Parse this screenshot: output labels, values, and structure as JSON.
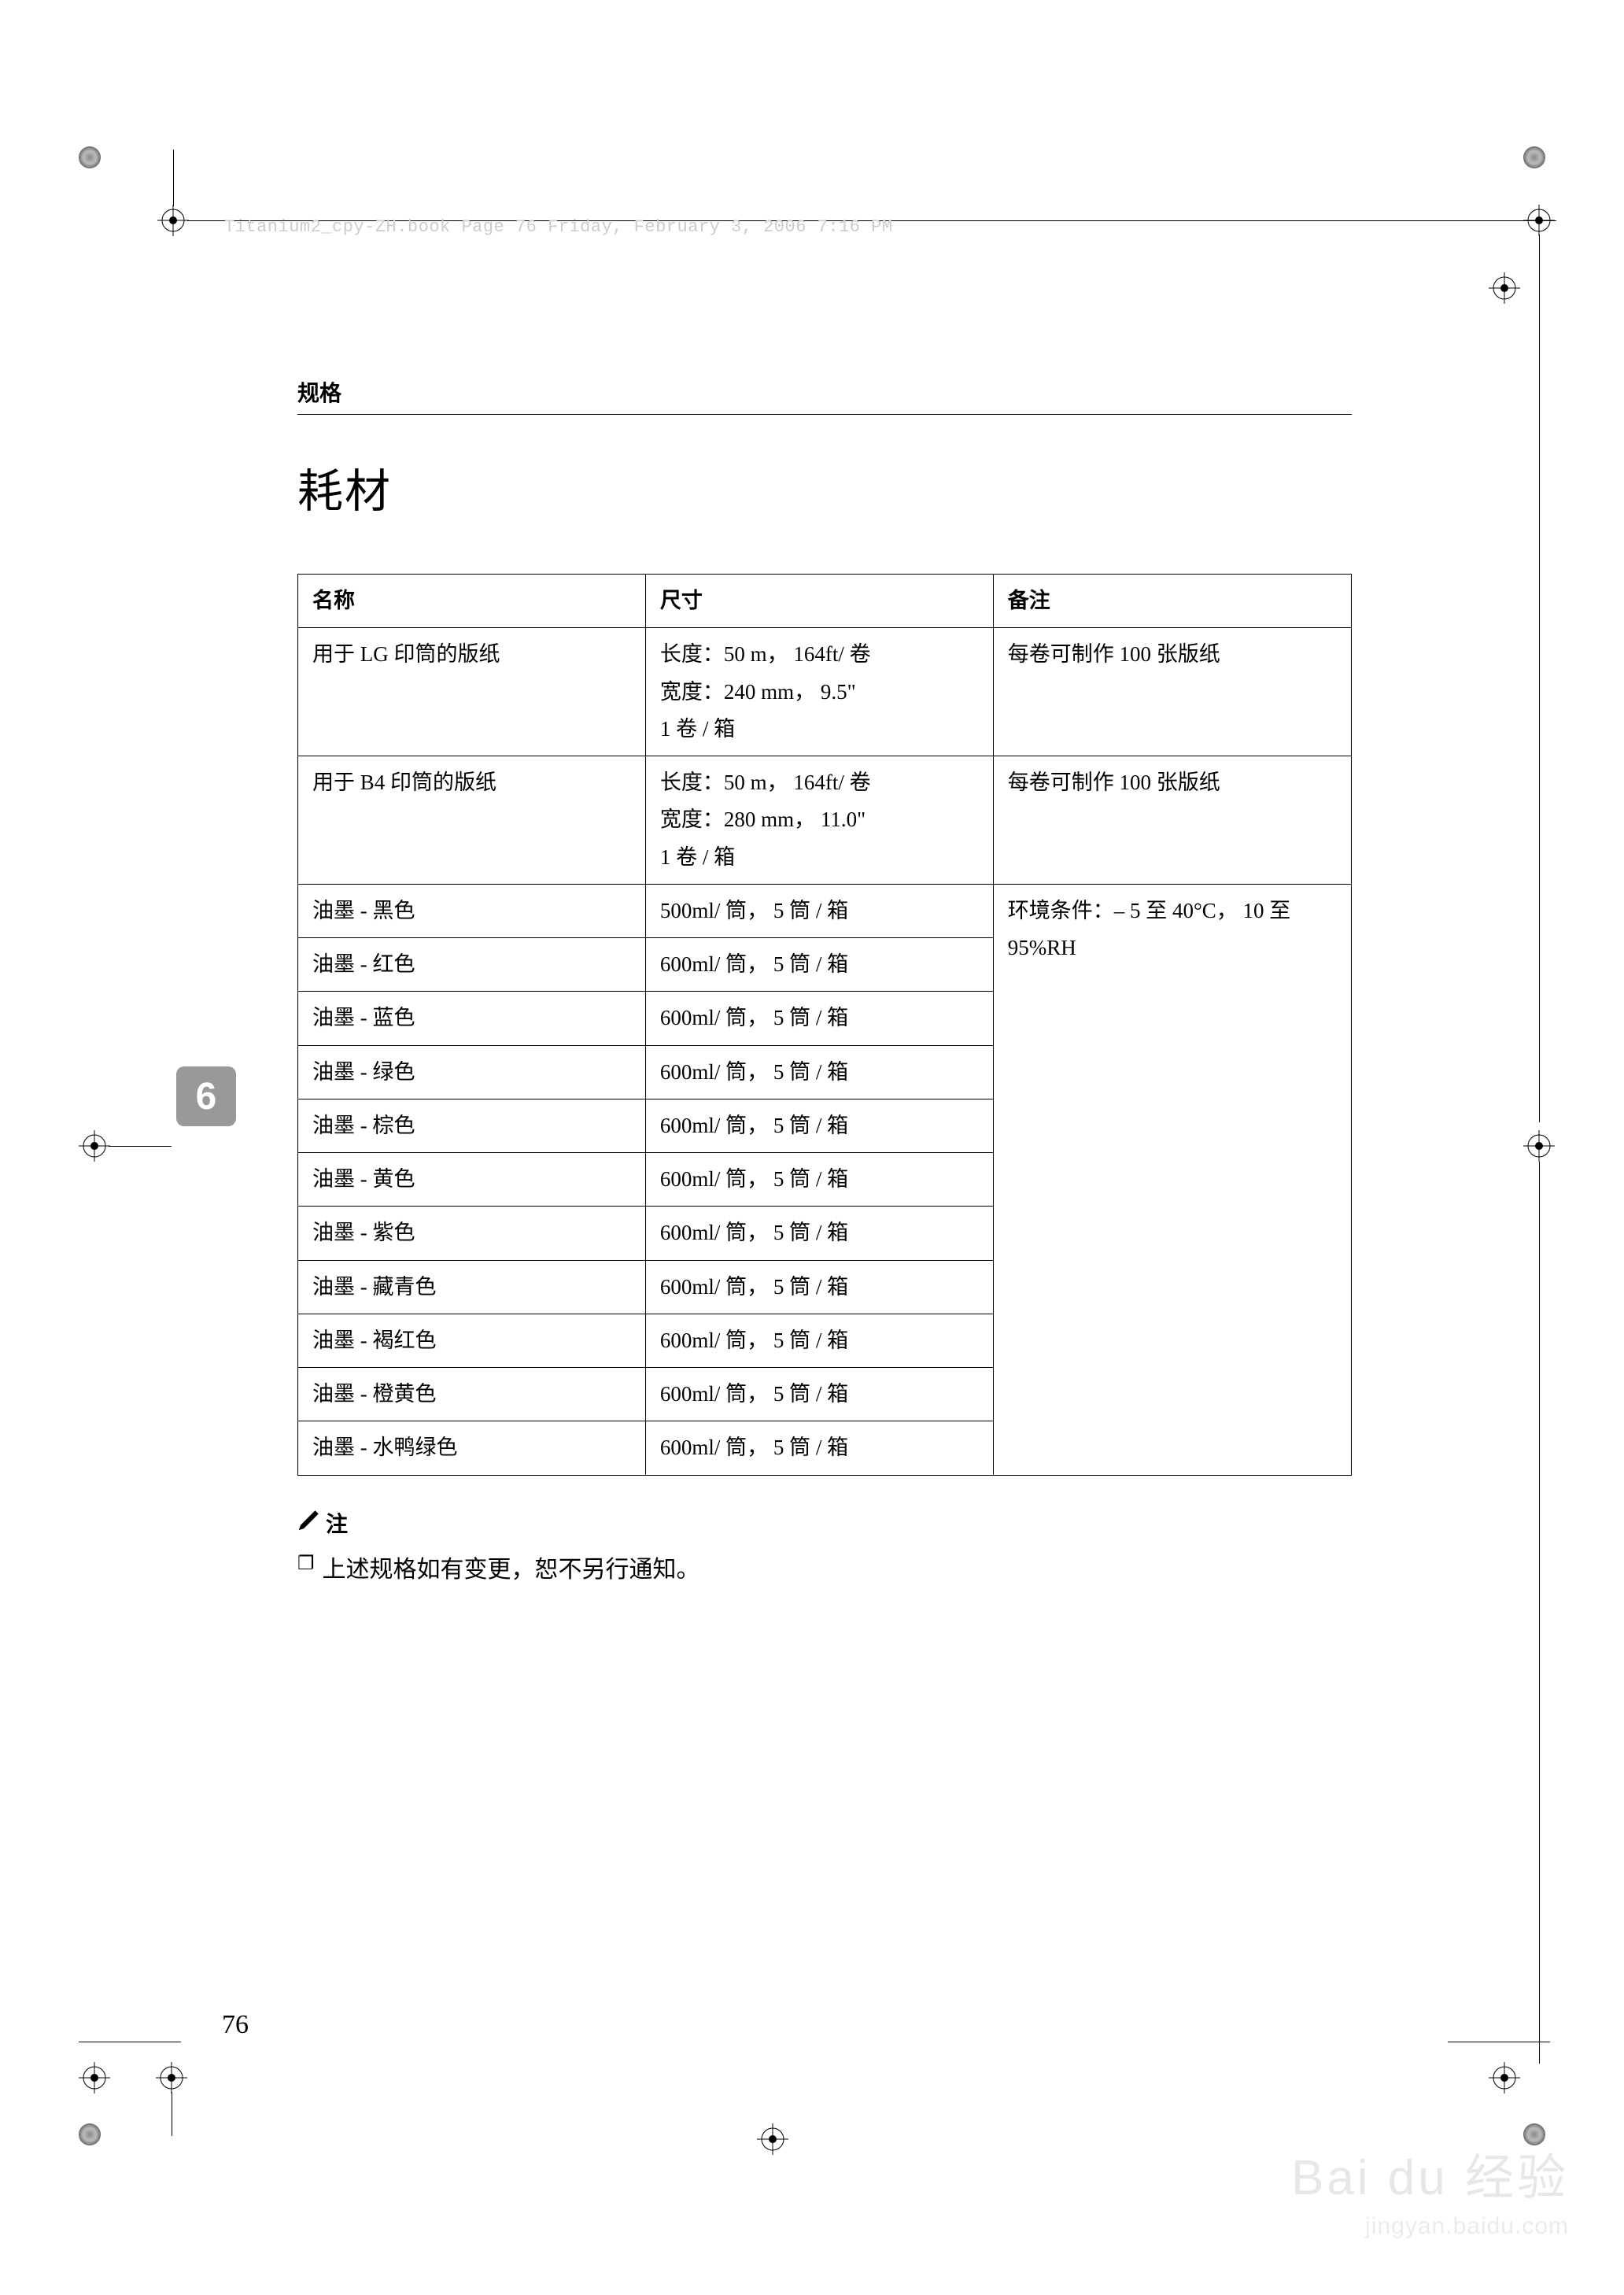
{
  "header_line": "Titanium2_cpy-ZH.book  Page 76  Friday, February 3, 2006  7:16 PM",
  "section_label": "规格",
  "title": "耗材",
  "side_tab": "6",
  "page_number": "76",
  "table": {
    "headers": {
      "name": "名称",
      "dim": "尺寸",
      "remark": "备注"
    },
    "master_rows": [
      {
        "name": "用于 LG 印筒的版纸",
        "dim": "长度：50 m， 164ft/ 卷\n宽度：240 mm， 9.5\"\n1 卷 / 箱",
        "remark": "每卷可制作 100 张版纸"
      },
      {
        "name": "用于 B4 印筒的版纸",
        "dim": "长度：50 m， 164ft/ 卷\n宽度：280 mm， 11.0\"\n1 卷 / 箱",
        "remark": "每卷可制作 100 张版纸"
      }
    ],
    "ink_rows": [
      {
        "name": "油墨 - 黑色",
        "dim": "500ml/ 筒， 5 筒 / 箱"
      },
      {
        "name": "油墨 - 红色",
        "dim": "600ml/ 筒， 5 筒 / 箱"
      },
      {
        "name": "油墨 - 蓝色",
        "dim": "600ml/ 筒， 5 筒 / 箱"
      },
      {
        "name": "油墨 - 绿色",
        "dim": "600ml/ 筒， 5 筒 / 箱"
      },
      {
        "name": "油墨 - 棕色",
        "dim": "600ml/ 筒， 5 筒 / 箱"
      },
      {
        "name": "油墨 - 黄色",
        "dim": "600ml/ 筒， 5 筒 / 箱"
      },
      {
        "name": "油墨 - 紫色",
        "dim": "600ml/ 筒， 5 筒 / 箱"
      },
      {
        "name": "油墨 - 藏青色",
        "dim": "600ml/ 筒， 5 筒 / 箱"
      },
      {
        "name": "油墨 - 褐红色",
        "dim": "600ml/ 筒， 5 筒 / 箱"
      },
      {
        "name": "油墨 - 橙黄色",
        "dim": "600ml/ 筒， 5 筒 / 箱"
      },
      {
        "name": "油墨 - 水鸭绿色",
        "dim": "600ml/ 筒， 5 筒 / 箱"
      }
    ],
    "ink_remark": "环境条件：– 5 至 40°C， 10 至 95%RH"
  },
  "note": {
    "heading": "注",
    "body": "上述规格如有变更，恕不另行通知。"
  },
  "watermark": {
    "logo": "Bai du 经验",
    "sub": "jingyan.baidu.com"
  },
  "styling": {
    "page_bg": "#ffffff",
    "text_color": "#000000",
    "header_color": "#cccccc",
    "tab_bg": "#999999",
    "tab_fg": "#ffffff",
    "border_color": "#000000",
    "body_fontsize": 27,
    "title_fontsize": 58,
    "section_fontsize": 28,
    "pagenum_fontsize": 34
  }
}
